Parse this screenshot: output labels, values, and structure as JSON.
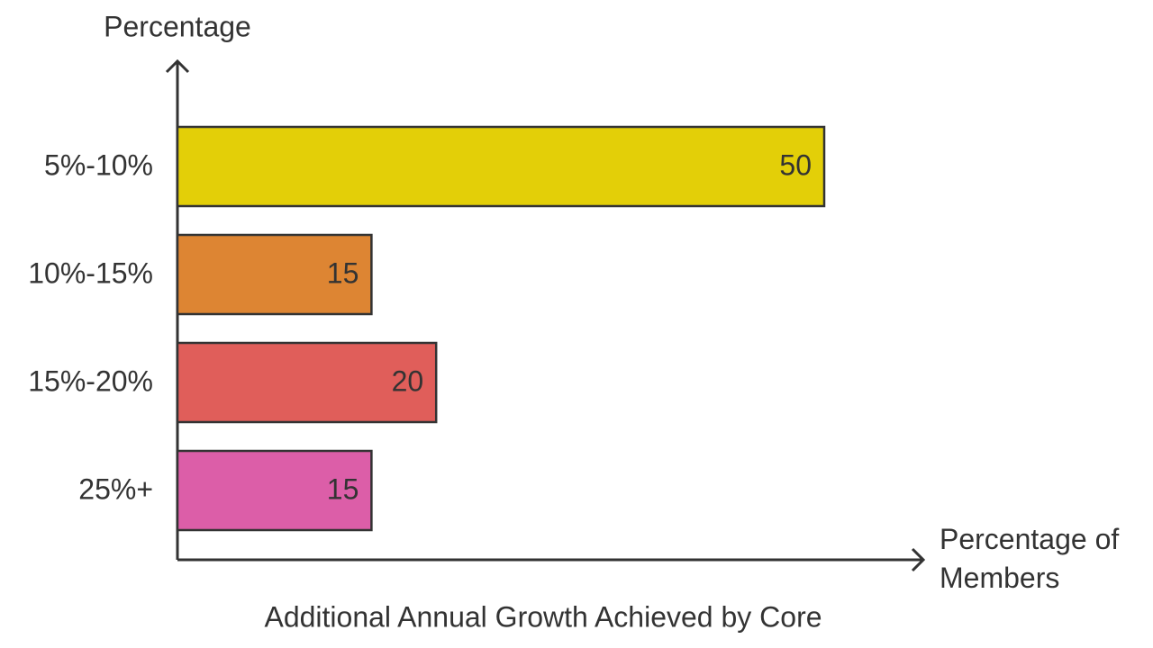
{
  "chart_data": {
    "type": "bar",
    "orientation": "horizontal",
    "title": "Additional Annual Growth Achieved by Core",
    "y_label": "Percentage",
    "x_label": "Percentage of Members",
    "categories": [
      "5%-10%",
      "10%-15%",
      "15%-20%",
      "25%+"
    ],
    "values": [
      50,
      15,
      20,
      15
    ],
    "colors": [
      "#e3cf08",
      "#dd8533",
      "#e05e5a",
      "#dc5ea8"
    ]
  }
}
